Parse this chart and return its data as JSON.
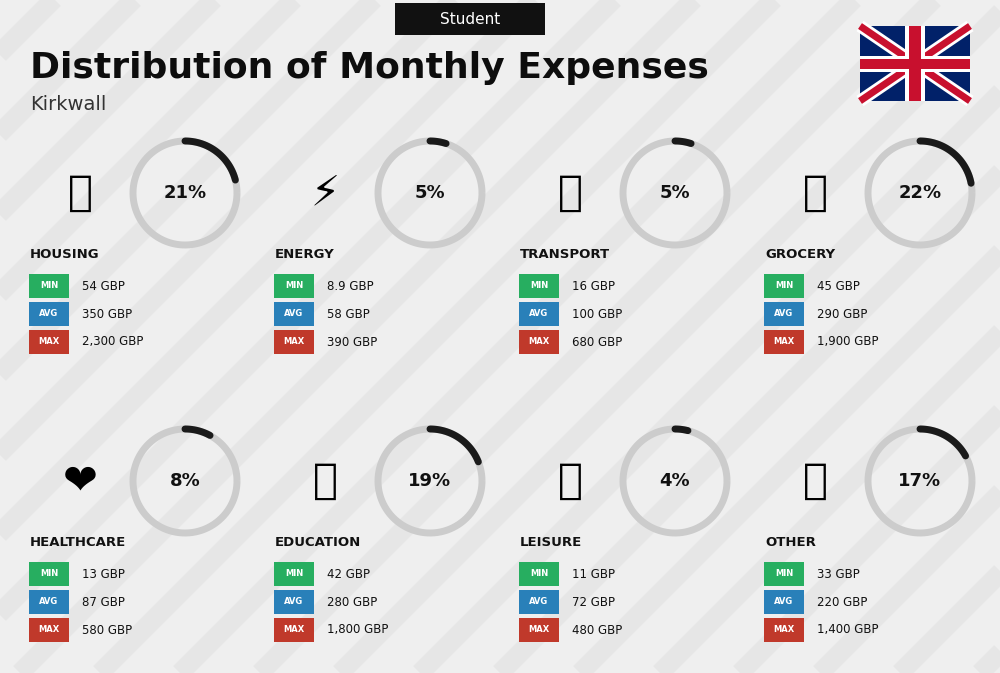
{
  "title": "Distribution of Monthly Expenses",
  "subtitle": "Student",
  "city": "Kirkwall",
  "bg_color": "#efefef",
  "categories": [
    {
      "name": "HOUSING",
      "pct": 21,
      "min": "54 GBP",
      "avg": "350 GBP",
      "max": "2,300 GBP",
      "icon": "🏢",
      "row": 0,
      "col": 0
    },
    {
      "name": "ENERGY",
      "pct": 5,
      "min": "8.9 GBP",
      "avg": "58 GBP",
      "max": "390 GBP",
      "icon": "⚡",
      "row": 0,
      "col": 1
    },
    {
      "name": "TRANSPORT",
      "pct": 5,
      "min": "16 GBP",
      "avg": "100 GBP",
      "max": "680 GBP",
      "icon": "🚌",
      "row": 0,
      "col": 2
    },
    {
      "name": "GROCERY",
      "pct": 22,
      "min": "45 GBP",
      "avg": "290 GBP",
      "max": "1,900 GBP",
      "icon": "🛒",
      "row": 0,
      "col": 3
    },
    {
      "name": "HEALTHCARE",
      "pct": 8,
      "min": "13 GBP",
      "avg": "87 GBP",
      "max": "580 GBP",
      "icon": "❤",
      "row": 1,
      "col": 0
    },
    {
      "name": "EDUCATION",
      "pct": 19,
      "min": "42 GBP",
      "avg": "280 GBP",
      "max": "1,800 GBP",
      "icon": "🎓",
      "row": 1,
      "col": 1
    },
    {
      "name": "LEISURE",
      "pct": 4,
      "min": "11 GBP",
      "avg": "72 GBP",
      "max": "480 GBP",
      "icon": "🛍",
      "row": 1,
      "col": 2
    },
    {
      "name": "OTHER",
      "pct": 17,
      "min": "33 GBP",
      "avg": "220 GBP",
      "max": "1,400 GBP",
      "icon": "👜",
      "row": 1,
      "col": 3
    }
  ],
  "color_min": "#27ae60",
  "color_avg": "#2980b9",
  "color_max": "#c0392b",
  "label_min": "MIN",
  "label_avg": "AVG",
  "label_max": "MAX",
  "circle_color_active": "#1a1a1a",
  "circle_color_bg": "#cccccc",
  "header_bg": "#111111",
  "header_text": "#ffffff"
}
